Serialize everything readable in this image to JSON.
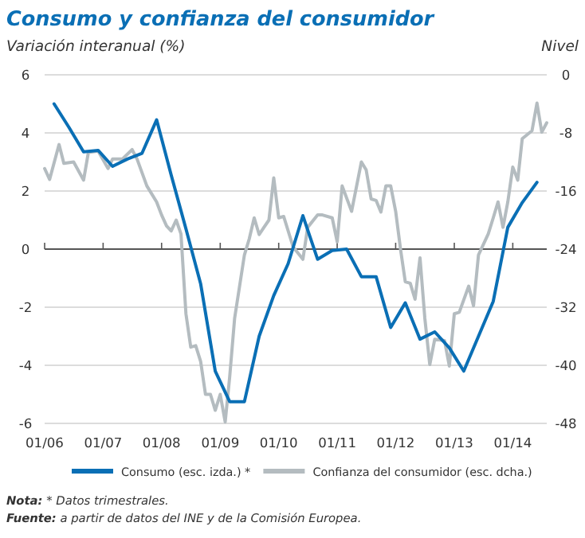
{
  "chart_data": {
    "type": "line",
    "title": "Consumo y confianza del consumidor",
    "ylabel": "Variación interanual (%)",
    "y2label": "Nivel",
    "xlim": [
      "2006-01",
      "2014-08"
    ],
    "xticks": [
      {
        "value": "2006-01",
        "label": "01/06"
      },
      {
        "value": "2007-01",
        "label": "01/07"
      },
      {
        "value": "2008-01",
        "label": "01/08"
      },
      {
        "value": "2009-01",
        "label": "01/09"
      },
      {
        "value": "2010-01",
        "label": "01/10"
      },
      {
        "value": "2011-01",
        "label": "01/11"
      },
      {
        "value": "2012-01",
        "label": "01/12"
      },
      {
        "value": "2013-01",
        "label": "01/13"
      },
      {
        "value": "2014-01",
        "label": "01/14"
      }
    ],
    "ylim": [
      -6,
      6
    ],
    "yticks": [
      -6,
      -4,
      -2,
      0,
      2,
      4,
      6
    ],
    "y2lim": [
      -48,
      0
    ],
    "y2ticks": [
      -48,
      -40,
      -32,
      -24,
      -16,
      -8,
      0
    ],
    "grid": "y",
    "legend": "bottom",
    "line_style": "solid",
    "marker": "none",
    "series": [
      {
        "name": "Consumo (esc. izda.) *",
        "color": "#0a6fb5",
        "x": [
          "2006-03",
          "2006-06",
          "2006-09",
          "2006-12",
          "2007-03",
          "2007-06",
          "2007-09",
          "2007-12",
          "2008-03",
          "2008-06",
          "2008-09",
          "2008-12",
          "2009-03",
          "2009-06",
          "2009-09",
          "2009-12",
          "2010-03",
          "2010-06",
          "2010-09",
          "2010-12",
          "2011-03",
          "2011-06",
          "2011-09",
          "2011-12",
          "2012-03",
          "2012-06",
          "2012-09",
          "2012-12",
          "2013-03",
          "2013-06",
          "2013-09",
          "2013-12",
          "2014-03",
          "2014-06"
        ],
        "values": [
          5.0,
          4.2,
          3.35,
          3.4,
          2.85,
          3.1,
          3.3,
          4.45,
          2.55,
          0.7,
          -1.2,
          -4.2,
          -5.25,
          -5.25,
          -3.0,
          -1.6,
          -0.5,
          1.15,
          -0.35,
          -0.05,
          0,
          -0.95,
          -0.95,
          -2.7,
          -1.85,
          -3.1,
          -2.85,
          -3.4,
          -4.2,
          -3.0,
          -1.8,
          0.75,
          1.6,
          2.3
        ]
      },
      {
        "name": "Confianza del consumidor (esc. dcha.)",
        "color": "#b4bcc0",
        "axis": "y2",
        "x": [
          "2006-01",
          "2006-02",
          "2006-04",
          "2006-05",
          "2006-07",
          "2006-09",
          "2006-10",
          "2006-12",
          "2007-02",
          "2007-03",
          "2007-05",
          "2007-07",
          "2007-08",
          "2007-10",
          "2007-12",
          "2008-01",
          "2008-02",
          "2008-03",
          "2008-04",
          "2008-05",
          "2008-06",
          "2008-07",
          "2008-08",
          "2008-09",
          "2008-10",
          "2008-11",
          "2008-12",
          "2009-01",
          "2009-02",
          "2009-03",
          "2009-04",
          "2009-06",
          "2009-07",
          "2009-08",
          "2009-09",
          "2009-10",
          "2009-11",
          "2009-12",
          "2010-01",
          "2010-02",
          "2010-04",
          "2010-06",
          "2010-07",
          "2010-09",
          "2010-10",
          "2010-12",
          "2011-01",
          "2011-02",
          "2011-04",
          "2011-06",
          "2011-07",
          "2011-08",
          "2011-09",
          "2011-10",
          "2011-11",
          "2011-12",
          "2012-01",
          "2012-02",
          "2012-03",
          "2012-04",
          "2012-05",
          "2012-06",
          "2012-07",
          "2012-08",
          "2012-09",
          "2012-11",
          "2012-12",
          "2013-01",
          "2013-02",
          "2013-04",
          "2013-05",
          "2013-06",
          "2013-08",
          "2013-09",
          "2013-10",
          "2013-11",
          "2013-12",
          "2014-01",
          "2014-02",
          "2014-03",
          "2014-05",
          "2014-06",
          "2014-07",
          "2014-08"
        ],
        "values": [
          -12.9,
          -14.4,
          -9.6,
          -12.2,
          -12,
          -14.5,
          -10.7,
          -10.5,
          -12.9,
          -11.6,
          -11.6,
          -10.3,
          -11.6,
          -15.3,
          -17.5,
          -19.3,
          -20.8,
          -21.5,
          -20,
          -21.9,
          -32.9,
          -37.5,
          -37.3,
          -39.5,
          -44,
          -44,
          -46.2,
          -44,
          -47.8,
          -41.6,
          -33.5,
          -24.8,
          -22.6,
          -19.7,
          -22,
          -21,
          -20,
          -14.2,
          -19.7,
          -19.5,
          -23.7,
          -25.4,
          -21,
          -19.3,
          -19.3,
          -19.7,
          -23,
          -15.3,
          -18.8,
          -12,
          -13.1,
          -17.1,
          -17.3,
          -18.9,
          -15.3,
          -15.3,
          -18.8,
          -24.1,
          -28.5,
          -28.7,
          -30.9,
          -25.2,
          -33.5,
          -39.9,
          -36.4,
          -36.6,
          -40.1,
          -32.9,
          -32.7,
          -29.1,
          -31.8,
          -24.8,
          -21.9,
          -19.7,
          -17.5,
          -21,
          -17.5,
          -12.7,
          -14.5,
          -8.8,
          -7.7,
          -3.9,
          -7.9,
          -6.6
        ]
      }
    ],
    "annotations": [
      "Nota: * Datos trimestrales.",
      "Fuente: a partir de datos del INE y de la Comisión Europea."
    ]
  }
}
